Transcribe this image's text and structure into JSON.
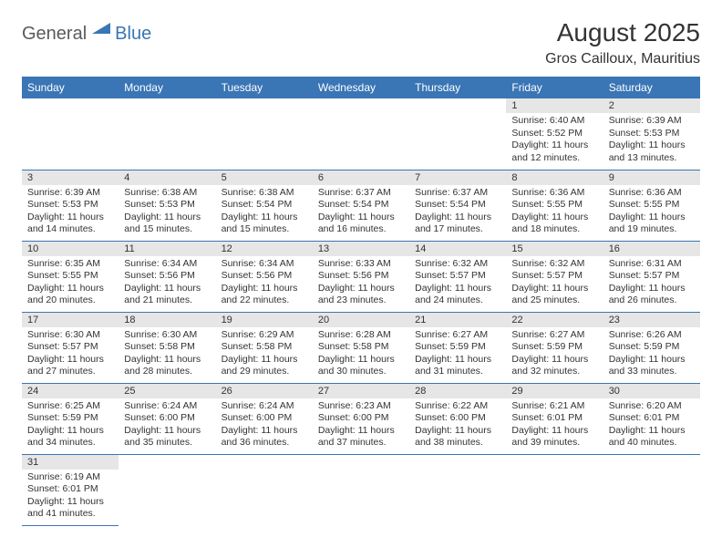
{
  "logo": {
    "general": "General",
    "blue": "Blue"
  },
  "title": "August 2025",
  "location": "Gros Cailloux, Mauritius",
  "colors": {
    "header_bg": "#3a75b5",
    "header_fg": "#ffffff",
    "daynum_bg": "#e6e6e6",
    "cell_border": "#3a75b5",
    "text": "#333333",
    "logo_gray": "#5a5a5a",
    "logo_blue": "#3a75b5"
  },
  "weekdays": [
    "Sunday",
    "Monday",
    "Tuesday",
    "Wednesday",
    "Thursday",
    "Friday",
    "Saturday"
  ],
  "weeks": [
    [
      null,
      null,
      null,
      null,
      null,
      {
        "n": "1",
        "sr": "Sunrise: 6:40 AM",
        "ss": "Sunset: 5:52 PM",
        "dl": "Daylight: 11 hours and 12 minutes."
      },
      {
        "n": "2",
        "sr": "Sunrise: 6:39 AM",
        "ss": "Sunset: 5:53 PM",
        "dl": "Daylight: 11 hours and 13 minutes."
      }
    ],
    [
      {
        "n": "3",
        "sr": "Sunrise: 6:39 AM",
        "ss": "Sunset: 5:53 PM",
        "dl": "Daylight: 11 hours and 14 minutes."
      },
      {
        "n": "4",
        "sr": "Sunrise: 6:38 AM",
        "ss": "Sunset: 5:53 PM",
        "dl": "Daylight: 11 hours and 15 minutes."
      },
      {
        "n": "5",
        "sr": "Sunrise: 6:38 AM",
        "ss": "Sunset: 5:54 PM",
        "dl": "Daylight: 11 hours and 15 minutes."
      },
      {
        "n": "6",
        "sr": "Sunrise: 6:37 AM",
        "ss": "Sunset: 5:54 PM",
        "dl": "Daylight: 11 hours and 16 minutes."
      },
      {
        "n": "7",
        "sr": "Sunrise: 6:37 AM",
        "ss": "Sunset: 5:54 PM",
        "dl": "Daylight: 11 hours and 17 minutes."
      },
      {
        "n": "8",
        "sr": "Sunrise: 6:36 AM",
        "ss": "Sunset: 5:55 PM",
        "dl": "Daylight: 11 hours and 18 minutes."
      },
      {
        "n": "9",
        "sr": "Sunrise: 6:36 AM",
        "ss": "Sunset: 5:55 PM",
        "dl": "Daylight: 11 hours and 19 minutes."
      }
    ],
    [
      {
        "n": "10",
        "sr": "Sunrise: 6:35 AM",
        "ss": "Sunset: 5:55 PM",
        "dl": "Daylight: 11 hours and 20 minutes."
      },
      {
        "n": "11",
        "sr": "Sunrise: 6:34 AM",
        "ss": "Sunset: 5:56 PM",
        "dl": "Daylight: 11 hours and 21 minutes."
      },
      {
        "n": "12",
        "sr": "Sunrise: 6:34 AM",
        "ss": "Sunset: 5:56 PM",
        "dl": "Daylight: 11 hours and 22 minutes."
      },
      {
        "n": "13",
        "sr": "Sunrise: 6:33 AM",
        "ss": "Sunset: 5:56 PM",
        "dl": "Daylight: 11 hours and 23 minutes."
      },
      {
        "n": "14",
        "sr": "Sunrise: 6:32 AM",
        "ss": "Sunset: 5:57 PM",
        "dl": "Daylight: 11 hours and 24 minutes."
      },
      {
        "n": "15",
        "sr": "Sunrise: 6:32 AM",
        "ss": "Sunset: 5:57 PM",
        "dl": "Daylight: 11 hours and 25 minutes."
      },
      {
        "n": "16",
        "sr": "Sunrise: 6:31 AM",
        "ss": "Sunset: 5:57 PM",
        "dl": "Daylight: 11 hours and 26 minutes."
      }
    ],
    [
      {
        "n": "17",
        "sr": "Sunrise: 6:30 AM",
        "ss": "Sunset: 5:57 PM",
        "dl": "Daylight: 11 hours and 27 minutes."
      },
      {
        "n": "18",
        "sr": "Sunrise: 6:30 AM",
        "ss": "Sunset: 5:58 PM",
        "dl": "Daylight: 11 hours and 28 minutes."
      },
      {
        "n": "19",
        "sr": "Sunrise: 6:29 AM",
        "ss": "Sunset: 5:58 PM",
        "dl": "Daylight: 11 hours and 29 minutes."
      },
      {
        "n": "20",
        "sr": "Sunrise: 6:28 AM",
        "ss": "Sunset: 5:58 PM",
        "dl": "Daylight: 11 hours and 30 minutes."
      },
      {
        "n": "21",
        "sr": "Sunrise: 6:27 AM",
        "ss": "Sunset: 5:59 PM",
        "dl": "Daylight: 11 hours and 31 minutes."
      },
      {
        "n": "22",
        "sr": "Sunrise: 6:27 AM",
        "ss": "Sunset: 5:59 PM",
        "dl": "Daylight: 11 hours and 32 minutes."
      },
      {
        "n": "23",
        "sr": "Sunrise: 6:26 AM",
        "ss": "Sunset: 5:59 PM",
        "dl": "Daylight: 11 hours and 33 minutes."
      }
    ],
    [
      {
        "n": "24",
        "sr": "Sunrise: 6:25 AM",
        "ss": "Sunset: 5:59 PM",
        "dl": "Daylight: 11 hours and 34 minutes."
      },
      {
        "n": "25",
        "sr": "Sunrise: 6:24 AM",
        "ss": "Sunset: 6:00 PM",
        "dl": "Daylight: 11 hours and 35 minutes."
      },
      {
        "n": "26",
        "sr": "Sunrise: 6:24 AM",
        "ss": "Sunset: 6:00 PM",
        "dl": "Daylight: 11 hours and 36 minutes."
      },
      {
        "n": "27",
        "sr": "Sunrise: 6:23 AM",
        "ss": "Sunset: 6:00 PM",
        "dl": "Daylight: 11 hours and 37 minutes."
      },
      {
        "n": "28",
        "sr": "Sunrise: 6:22 AM",
        "ss": "Sunset: 6:00 PM",
        "dl": "Daylight: 11 hours and 38 minutes."
      },
      {
        "n": "29",
        "sr": "Sunrise: 6:21 AM",
        "ss": "Sunset: 6:01 PM",
        "dl": "Daylight: 11 hours and 39 minutes."
      },
      {
        "n": "30",
        "sr": "Sunrise: 6:20 AM",
        "ss": "Sunset: 6:01 PM",
        "dl": "Daylight: 11 hours and 40 minutes."
      }
    ],
    [
      {
        "n": "31",
        "sr": "Sunrise: 6:19 AM",
        "ss": "Sunset: 6:01 PM",
        "dl": "Daylight: 11 hours and 41 minutes."
      },
      null,
      null,
      null,
      null,
      null,
      null
    ]
  ]
}
